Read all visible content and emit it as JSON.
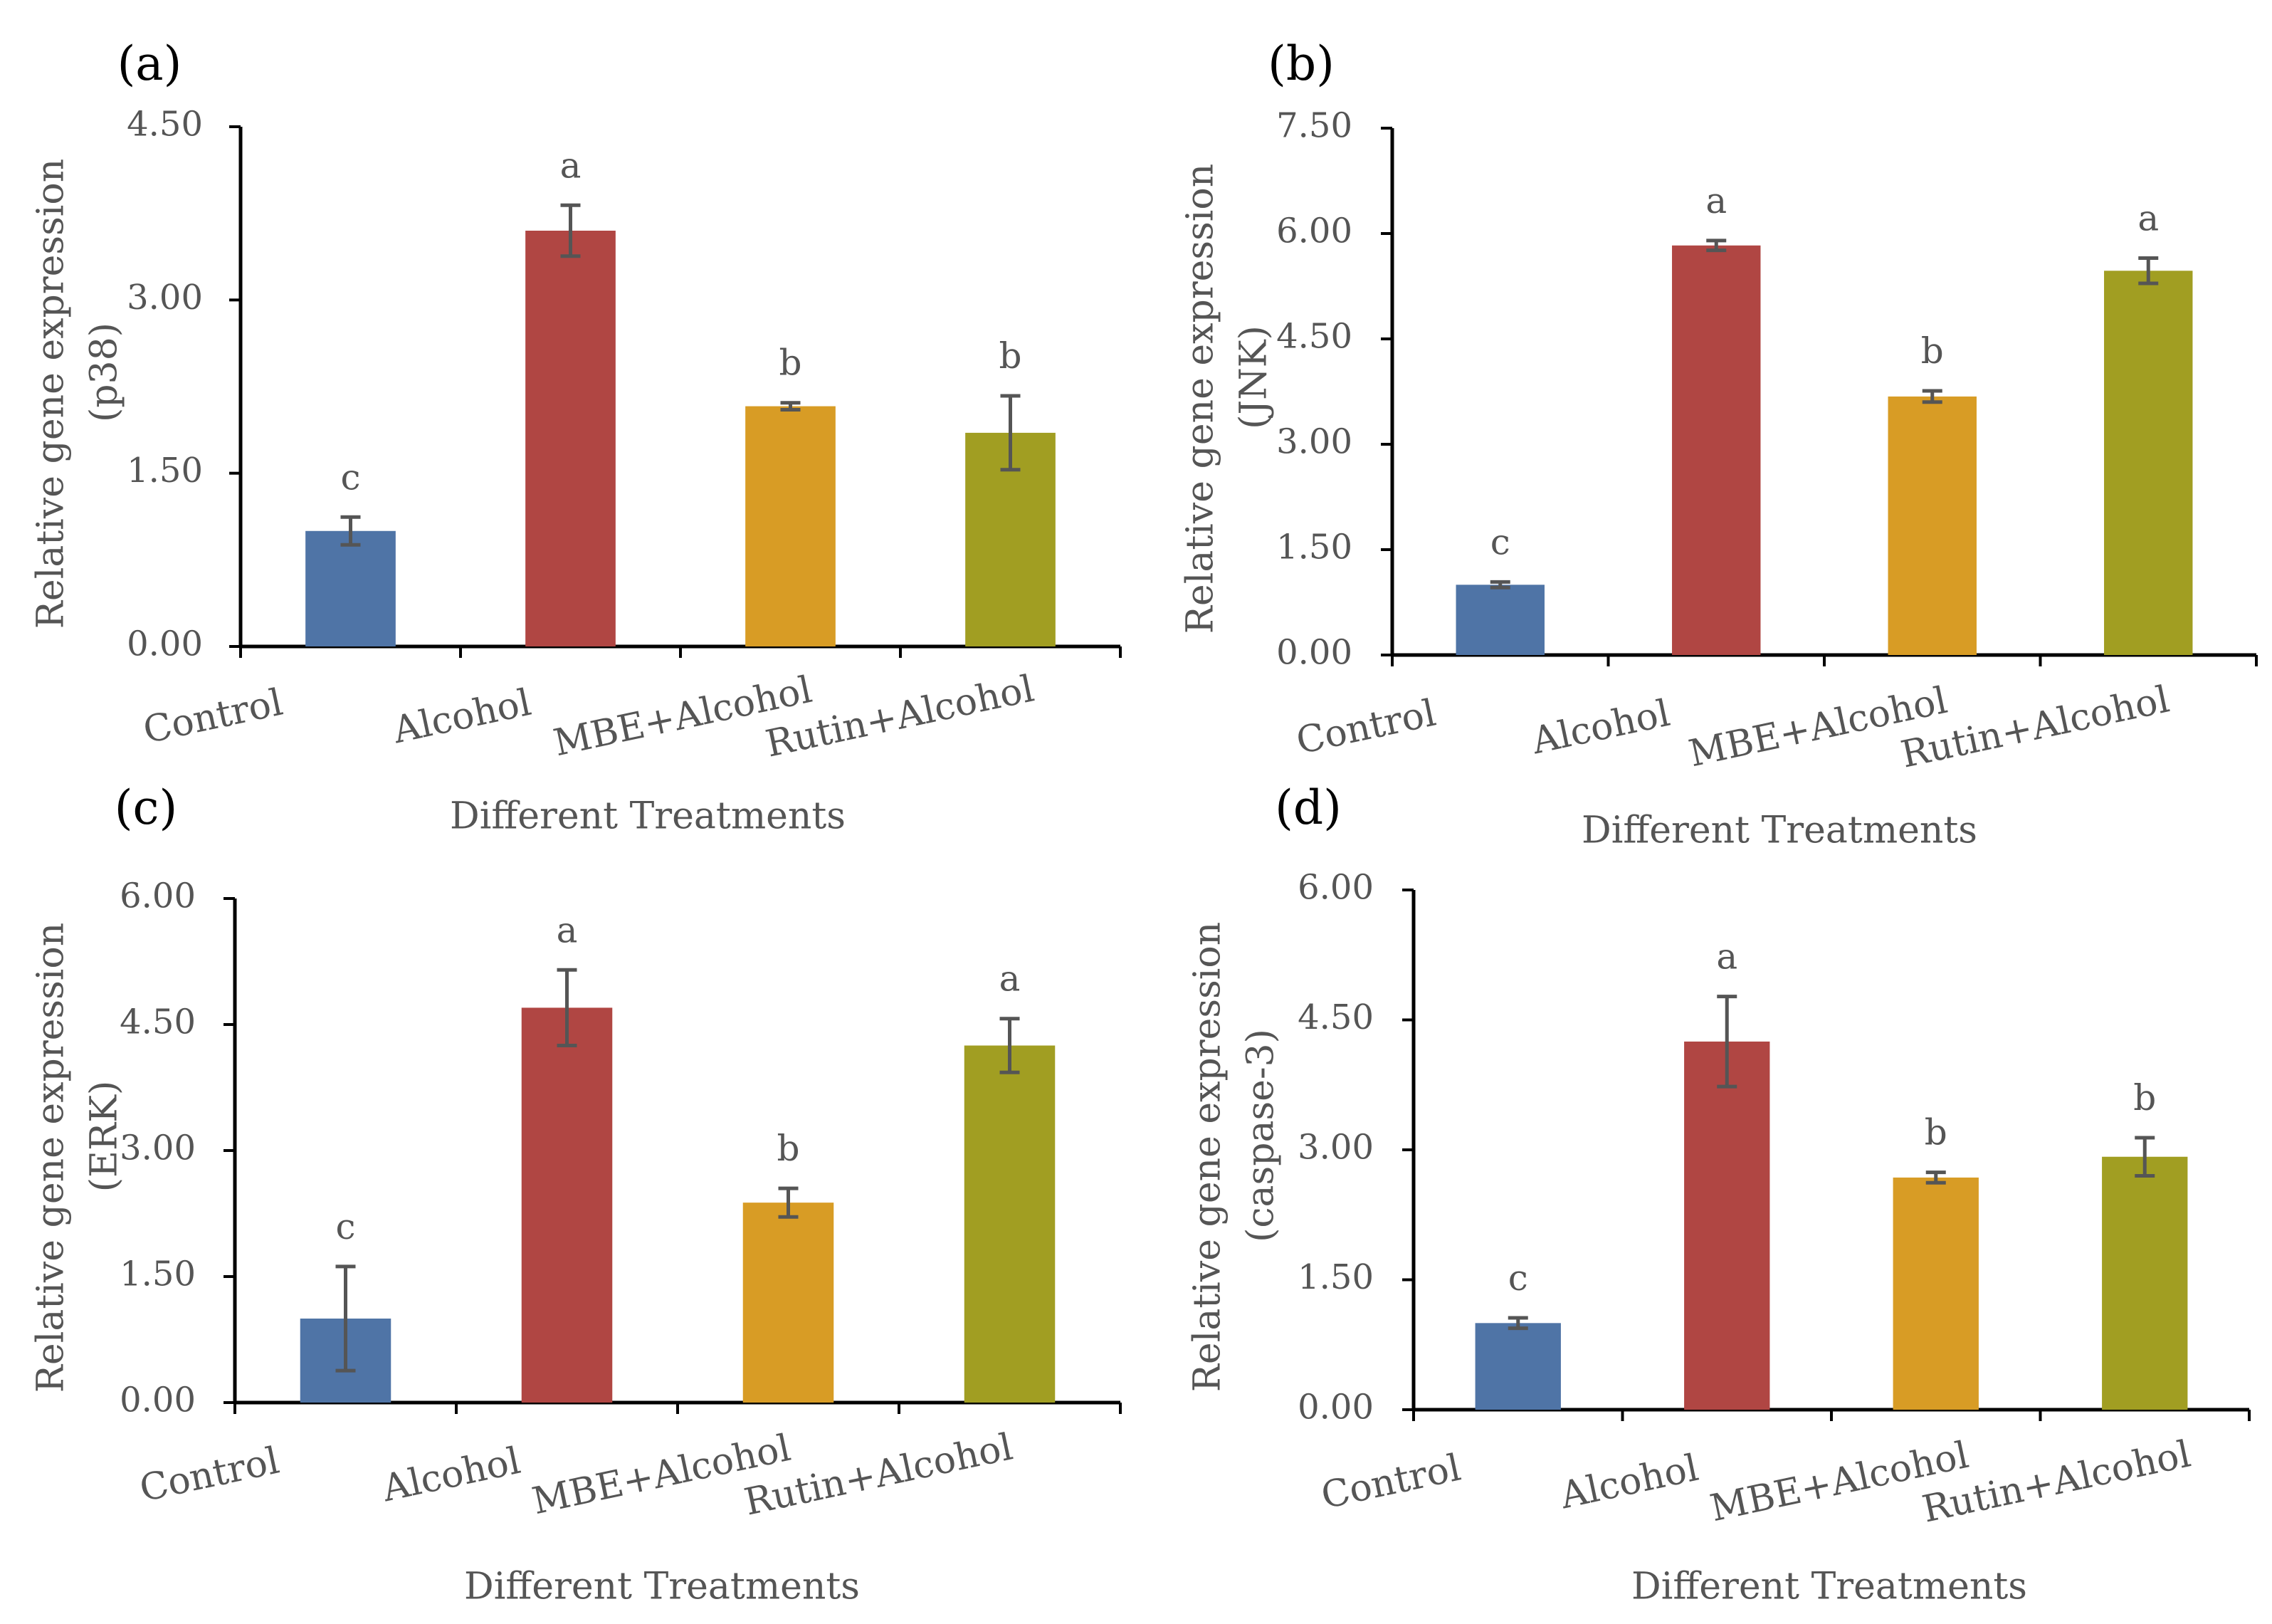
{
  "chart_data": [
    {
      "type": "bar",
      "panel": "(a)",
      "categories": [
        "Control",
        "Alcohol",
        "MBE+Alcohol",
        "Rutin+Alcohol"
      ],
      "values": [
        1.0,
        3.6,
        2.08,
        1.85
      ],
      "errors": [
        0.12,
        0.22,
        0.03,
        0.32
      ],
      "significance": [
        "c",
        "a",
        "b",
        "b"
      ],
      "colors": [
        "#4f74a6",
        "#b04643",
        "#d89c25",
        "#a19e22"
      ],
      "yticks": [
        "0.00",
        "1.50",
        "3.00",
        "4.50"
      ],
      "ylim": [
        0,
        4.5
      ],
      "ylabel": "Relative gene expression",
      "ylabel2": "(p38)",
      "xlabel": "Different Treatments"
    },
    {
      "type": "bar",
      "panel": "(b)",
      "categories": [
        "Control",
        "Alcohol",
        "MBE+Alcohol",
        "Rutin+Alcohol"
      ],
      "values": [
        1.0,
        5.83,
        3.68,
        5.47
      ],
      "errors": [
        0.04,
        0.07,
        0.08,
        0.18
      ],
      "significance": [
        "c",
        "a",
        "b",
        "a"
      ],
      "colors": [
        "#4f74a6",
        "#b04643",
        "#d89c25",
        "#a19e22"
      ],
      "yticks": [
        "0.00",
        "1.50",
        "3.00",
        "4.50",
        "6.00",
        "7.50"
      ],
      "ylim": [
        0,
        7.5
      ],
      "ylabel": "Relative gene expression",
      "ylabel2": "(JNK)",
      "xlabel": "Different Treatments"
    },
    {
      "type": "bar",
      "panel": "(c)",
      "categories": [
        "Control",
        "Alcohol",
        "MBE+Alcohol",
        "Rutin+Alcohol"
      ],
      "values": [
        1.0,
        4.7,
        2.38,
        4.25
      ],
      "errors": [
        0.62,
        0.45,
        0.17,
        0.32
      ],
      "significance": [
        "c",
        "a",
        "b",
        "a"
      ],
      "colors": [
        "#4f74a6",
        "#b04643",
        "#d89c25",
        "#a19e22"
      ],
      "yticks": [
        "0.00",
        "1.50",
        "3.00",
        "4.50",
        "6.00"
      ],
      "ylim": [
        0,
        6.0
      ],
      "ylabel": "Relative gene expression",
      "ylabel2": "(ERK)",
      "xlabel": "Different Treatments"
    },
    {
      "type": "bar",
      "panel": "(d)",
      "categories": [
        "Control",
        "Alcohol",
        "MBE+Alcohol",
        "Rutin+Alcohol"
      ],
      "values": [
        1.0,
        4.25,
        2.68,
        2.92
      ],
      "errors": [
        0.06,
        0.52,
        0.06,
        0.22
      ],
      "significance": [
        "c",
        "a",
        "b",
        "b"
      ],
      "colors": [
        "#4f74a6",
        "#b04643",
        "#d89c25",
        "#a19e22"
      ],
      "yticks": [
        "0.00",
        "1.50",
        "3.00",
        "4.50",
        "6.00"
      ],
      "ylim": [
        0,
        6.0
      ],
      "ylabel": "Relative gene expression",
      "ylabel2": "(caspase-3)",
      "xlabel": "Different Treatments"
    }
  ]
}
